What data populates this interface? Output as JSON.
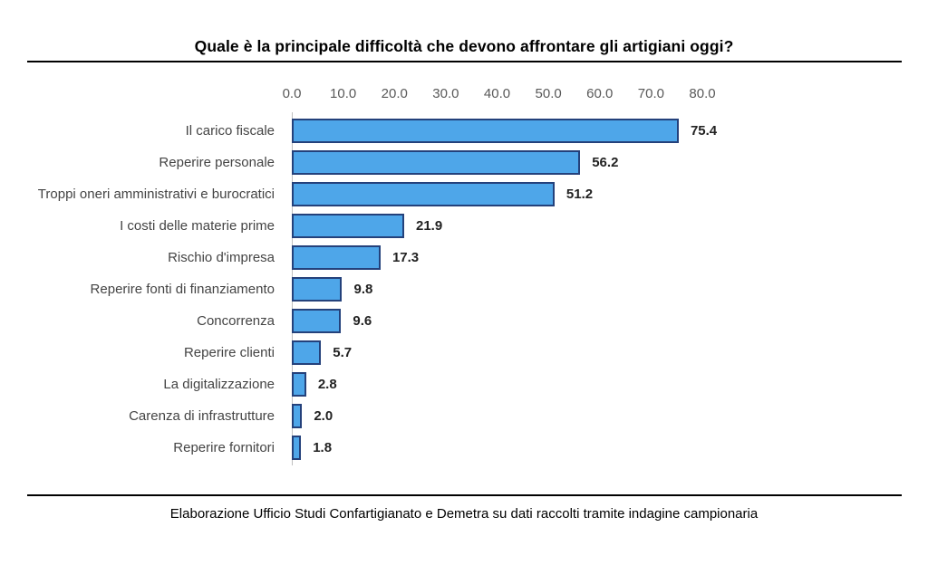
{
  "title": "Quale è la principale difficoltà che devono affrontare gli artigiani oggi?",
  "footer": "Elaborazione Ufficio Studi Confartigianato e Demetra su dati raccolti tramite indagine campionaria",
  "chart_data": {
    "type": "bar",
    "orientation": "horizontal",
    "title": "Quale è la principale difficoltà che devono affrontare gli artigiani oggi?",
    "source_note": "Elaborazione Ufficio Studi Confartigianato e Demetra su dati raccolti tramite indagine campionaria",
    "categories": [
      "Il carico fiscale",
      "Reperire personale",
      "Troppi oneri amministrativi e burocratici",
      "I costi delle materie prime",
      "Rischio d'impresa",
      "Reperire fonti di finanziamento",
      "Concorrenza",
      "Reperire clienti",
      "La digitalizzazione",
      "Carenza di infrastrutture",
      "Reperire fornitori"
    ],
    "values": [
      75.4,
      56.2,
      51.2,
      21.9,
      17.3,
      9.8,
      9.6,
      5.7,
      2.8,
      2.0,
      1.8
    ],
    "value_labels": [
      "75.4",
      "56.2",
      "51.2",
      "21.9",
      "17.3",
      "9.8",
      "9.6",
      "5.7",
      "2.8",
      "2.0",
      "1.8"
    ],
    "x_ticks": [
      "0.0",
      "10.0",
      "20.0",
      "30.0",
      "40.0",
      "50.0",
      "60.0",
      "70.0",
      "80.0"
    ],
    "x_tick_values": [
      0,
      10,
      20,
      30,
      40,
      50,
      60,
      70,
      80
    ],
    "xlim": [
      0,
      80
    ],
    "grid": false,
    "legend": false,
    "data_labels": "outside-end",
    "colors": {
      "bar_fill": "#4EA6E9",
      "bar_border": "#24417B",
      "tick_text": "#595959",
      "category_text": "#444444",
      "value_text": "#222222",
      "rule": "#000000",
      "axis_line": "#BFBFBF"
    }
  }
}
